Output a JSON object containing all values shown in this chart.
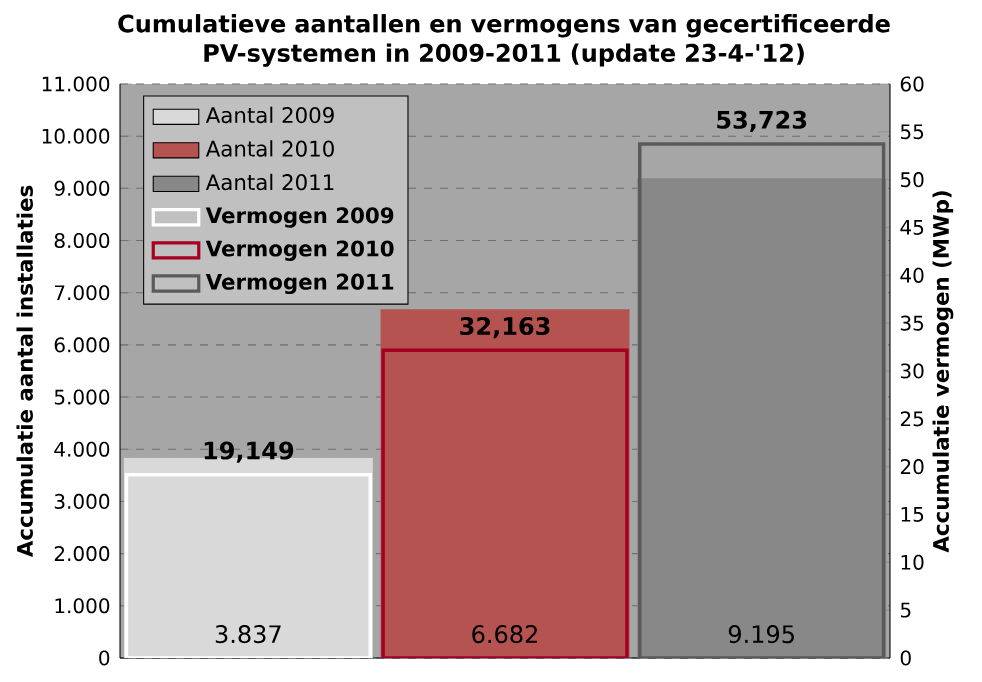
{
  "chart_data": {
    "type": "bar",
    "title": "Cumulatieve aantallen en vermogens van gecertificeerde PV-systemen in 2009-2011 (update 23-4-'12)",
    "ylabel": "Accumulatie aantal installaties",
    "y2label": "Accumulatie vermogen (MWp)",
    "categories": [
      null,
      null,
      null
    ],
    "series": [
      {
        "name": "Aantal 2009",
        "color": "#d9d9d9",
        "values": [
          3837,
          null,
          null
        ],
        "value_labels": [
          "3.837",
          null,
          null
        ]
      },
      {
        "name": "Aantal 2010",
        "color": "#b55350",
        "values": [
          null,
          6682,
          null
        ],
        "value_labels": [
          null,
          "6.682",
          null
        ]
      },
      {
        "name": "Aantal 2011",
        "color": "#888888",
        "values": [
          null,
          null,
          9195
        ],
        "value_labels": [
          null,
          null,
          "9.195"
        ]
      },
      {
        "name": "Vermogen 2009",
        "color": "#ffffff",
        "axis": "y2",
        "values": [
          19.149,
          null,
          null
        ],
        "value_labels": [
          "19,149",
          null,
          null
        ]
      },
      {
        "name": "Vermogen 2010",
        "color": "#a50021",
        "axis": "y2",
        "values": [
          null,
          32.163,
          null
        ],
        "value_labels": [
          null,
          "32,163",
          null
        ]
      },
      {
        "name": "Vermogen 2011",
        "color": "#5a5a5a",
        "axis": "y2",
        "values": [
          null,
          null,
          53.723
        ],
        "value_labels": [
          null,
          null,
          "53,723"
        ]
      }
    ],
    "ylim": [
      0,
      11000
    ],
    "yticks": [
      {
        "value": 0,
        "label": "0"
      },
      {
        "value": 1000,
        "label": "1.000"
      },
      {
        "value": 2000,
        "label": "2.000"
      },
      {
        "value": 3000,
        "label": "3.000"
      },
      {
        "value": 4000,
        "label": "4.000"
      },
      {
        "value": 5000,
        "label": "5.000"
      },
      {
        "value": 6000,
        "label": "6.000"
      },
      {
        "value": 7000,
        "label": "7.000"
      },
      {
        "value": 8000,
        "label": "8.000"
      },
      {
        "value": 9000,
        "label": "9.000"
      },
      {
        "value": 10000,
        "label": "10.000"
      },
      {
        "value": 11000,
        "label": "11.000"
      }
    ],
    "y2lim": [
      0,
      60
    ],
    "y2ticks": [
      0,
      5,
      10,
      15,
      20,
      25,
      30,
      35,
      40,
      45,
      50,
      55,
      60
    ],
    "grid": "y",
    "legend": "top left"
  }
}
